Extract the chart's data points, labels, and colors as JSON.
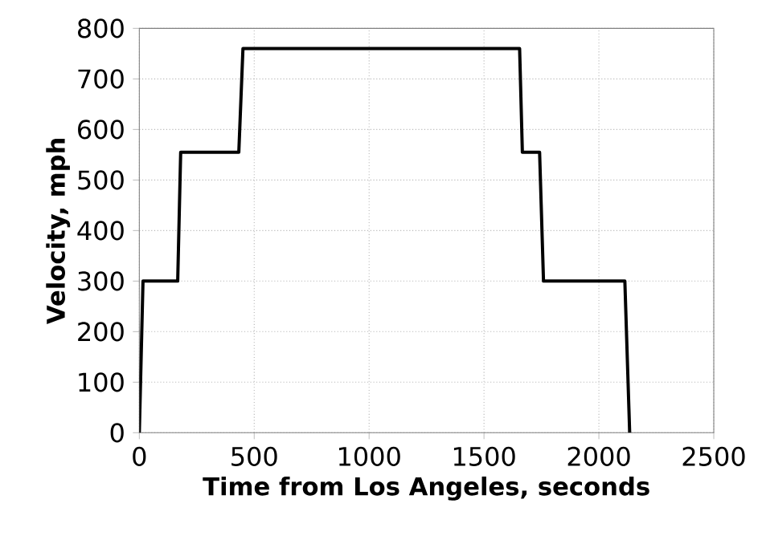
{
  "chart_data": {
    "type": "line",
    "xlabel": "Time from Los Angeles, seconds",
    "ylabel": "Velocity, mph",
    "x": [
      0,
      16,
      167,
      180,
      433,
      451,
      1655,
      1667,
      1742,
      1759,
      2113,
      2134
    ],
    "series": [
      {
        "color": "#000000",
        "values": [
          0,
          300,
          300,
          555,
          555,
          760,
          760,
          555,
          555,
          300,
          300,
          0
        ]
      }
    ],
    "xlim": [
      0,
      2500
    ],
    "xticks": [
      0,
      500,
      1000,
      1500,
      2000,
      2500
    ],
    "ylim": [
      0,
      800
    ],
    "yticks": [
      0,
      100,
      200,
      300,
      400,
      500,
      600,
      700,
      800
    ],
    "grid": true,
    "line_style": "solid",
    "marker": "none"
  }
}
